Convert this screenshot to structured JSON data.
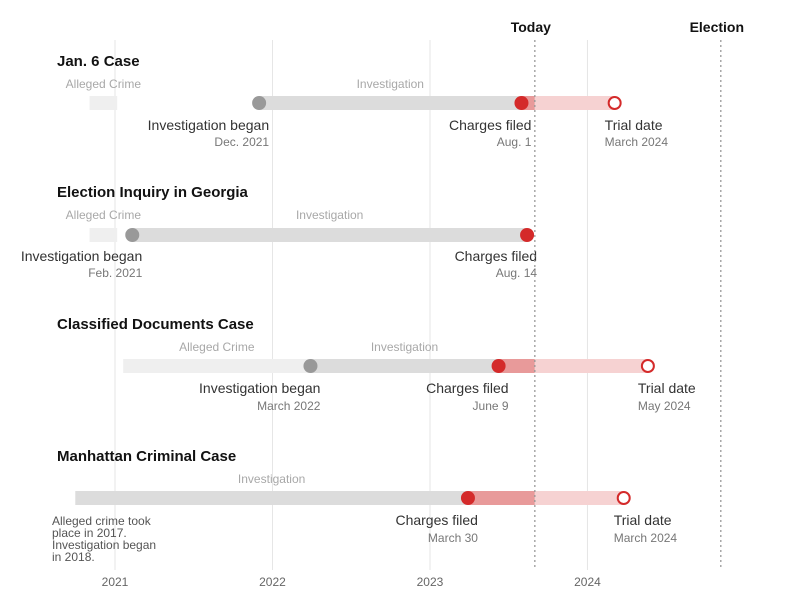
{
  "chart_data": {
    "type": "timeline",
    "x_domain": [
      "2021-01-01",
      "2024-12-31"
    ],
    "x_ticks": [
      {
        "date": "2021-01-01",
        "label": "2021"
      },
      {
        "date": "2022-01-01",
        "label": "2022"
      },
      {
        "date": "2023-01-01",
        "label": "2023"
      },
      {
        "date": "2024-01-01",
        "label": "2024"
      }
    ],
    "markers": [
      {
        "name": "today-marker",
        "label": "Today",
        "date": "2023-09-01"
      },
      {
        "name": "election-marker",
        "label": "Election",
        "date": "2024-11-05"
      }
    ],
    "cases": [
      {
        "title": "Jan. 6 Case",
        "phases": [
          {
            "label": "Alleged Crime",
            "start": "2020-11-03",
            "end": "2021-01-06",
            "kind": "crime"
          },
          {
            "label": "Investigation",
            "start": "2021-12-01",
            "end": "2023-08-01",
            "kind": "investigation"
          },
          {
            "label": "",
            "start": "2023-08-01",
            "end": "2024-03-04",
            "kind": "upcoming"
          }
        ],
        "events": [
          {
            "label": "Investigation began",
            "date_label": "Dec. 2021",
            "date": "2021-12-01",
            "type": "began"
          },
          {
            "label": "Charges filed",
            "date_label": "Aug. 1",
            "date": "2023-08-01",
            "type": "charged"
          },
          {
            "label": "Trial date",
            "date_label": "March 2024",
            "date": "2024-03-04",
            "type": "trial"
          }
        ]
      },
      {
        "title": "Election Inquiry in Georgia",
        "phases": [
          {
            "label": "Alleged Crime",
            "start": "2020-11-03",
            "end": "2021-01-06",
            "kind": "crime"
          },
          {
            "label": "Investigation",
            "start": "2021-02-10",
            "end": "2023-08-14",
            "kind": "investigation"
          }
        ],
        "events": [
          {
            "label": "Investigation began",
            "date_label": "Feb. 2021",
            "date": "2021-02-10",
            "type": "began"
          },
          {
            "label": "Charges filed",
            "date_label": "Aug. 14",
            "date": "2023-08-14",
            "type": "charged"
          }
        ]
      },
      {
        "title": "Classified Documents Case",
        "phases": [
          {
            "label": "Alleged Crime",
            "start": "2021-01-20",
            "end": "2022-03-30",
            "kind": "crime"
          },
          {
            "label": "Investigation",
            "start": "2022-03-30",
            "end": "2023-06-09",
            "kind": "investigation"
          },
          {
            "label": "",
            "start": "2023-06-09",
            "end": "2024-05-20",
            "kind": "upcoming"
          }
        ],
        "events": [
          {
            "label": "Investigation began",
            "date_label": "March 2022",
            "date": "2022-03-30",
            "type": "began"
          },
          {
            "label": "Charges filed",
            "date_label": "June 9",
            "date": "2023-06-09",
            "type": "charged"
          },
          {
            "label": "Trial date",
            "date_label": "May 2024",
            "date": "2024-05-20",
            "type": "trial"
          }
        ]
      },
      {
        "title": "Manhattan Criminal Case",
        "phases": [
          {
            "label": "Investigation",
            "start": "2020-10-01",
            "end": "2023-03-30",
            "kind": "investigation"
          },
          {
            "label": "",
            "start": "2023-03-30",
            "end": "2024-03-25",
            "kind": "upcoming"
          }
        ],
        "events": [
          {
            "label": "Charges filed",
            "date_label": "March 30",
            "date": "2023-03-30",
            "type": "charged"
          },
          {
            "label": "Trial date",
            "date_label": "March 2024",
            "date": "2024-03-25",
            "type": "trial"
          }
        ],
        "note_lines": [
          "Alleged crime took",
          "place in 2017.",
          "Investigation began",
          "in 2018."
        ]
      }
    ],
    "colors": {
      "crime": "#efefef",
      "investigation": "#dcdcdc",
      "began_dot": "#999999",
      "charged_dot": "#d42a2a",
      "upcoming_strong": "#e89a9a",
      "upcoming_light": "#f6d2d2",
      "trial_dot": "#d42a2a",
      "gridline": "#e6e6e6",
      "marker_line": "#999999"
    }
  }
}
